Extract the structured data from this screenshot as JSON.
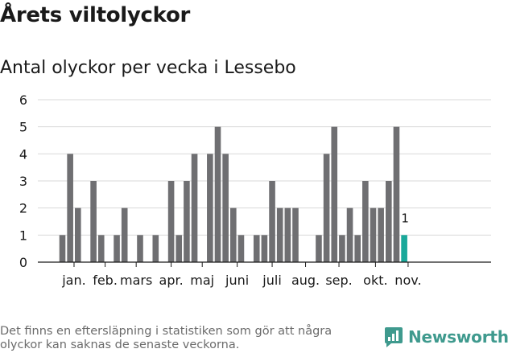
{
  "header": {
    "title": "Årets viltolyckor",
    "subtitle": "Antal olyckor per vecka i Lessebo"
  },
  "footer": {
    "note": "Det finns en eftersläpning i statistiken som gör att några olyckor kan saknas de senaste veckorna.",
    "brand": "Newsworthy"
  },
  "colors": {
    "bar": "#6f6f72",
    "highlight": "#1aa89a",
    "grid": "#d9d9d9",
    "brand": "#3f9a8e"
  },
  "chart_data": {
    "type": "bar",
    "title": "Antal olyckor per vecka i Lessebo",
    "xlabel": "",
    "ylabel": "",
    "ylim": [
      0,
      6
    ],
    "yticks": [
      "0",
      "1",
      "2",
      "3",
      "4",
      "5",
      "6"
    ],
    "grid": true,
    "weeks": [
      1,
      2,
      3,
      4,
      5,
      6,
      7,
      8,
      9,
      10,
      11,
      12,
      13,
      14,
      15,
      16,
      17,
      18,
      19,
      20,
      21,
      22,
      23,
      24,
      25,
      26,
      27,
      28,
      29,
      30,
      31,
      32,
      33,
      34,
      35,
      36,
      37,
      38,
      39,
      40,
      41,
      42,
      43,
      44,
      45,
      46
    ],
    "values": [
      1,
      4,
      2,
      0,
      3,
      1,
      0,
      1,
      2,
      0,
      1,
      0,
      1,
      0,
      3,
      1,
      3,
      4,
      0,
      4,
      5,
      4,
      2,
      1,
      0,
      1,
      1,
      3,
      2,
      2,
      2,
      0,
      0,
      1,
      4,
      5,
      1,
      2,
      1,
      3,
      2,
      2,
      3,
      5,
      1,
      0
    ],
    "highlight_index": 44,
    "highlight_label": "1",
    "month_labels": [
      {
        "label": "jan.",
        "week": 2.5
      },
      {
        "label": "feb.",
        "week": 6.5
      },
      {
        "label": "mars",
        "week": 10.5
      },
      {
        "label": "apr.",
        "week": 15
      },
      {
        "label": "maj",
        "week": 19
      },
      {
        "label": "juni",
        "week": 23.5
      },
      {
        "label": "juli",
        "week": 28
      },
      {
        "label": "aug.",
        "week": 32.3
      },
      {
        "label": "sep.",
        "week": 36.6
      },
      {
        "label": "okt.",
        "week": 41.3
      },
      {
        "label": "nov.",
        "week": 45.5
      }
    ]
  }
}
